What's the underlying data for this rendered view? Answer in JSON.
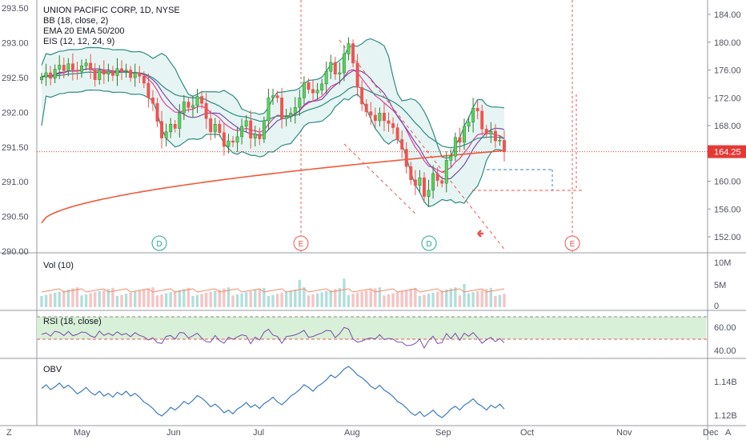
{
  "legend": {
    "title": "UNION PACIFIC CORP, 1D, NYSE",
    "bb": "BB (18, close, 2)",
    "ema": "EMA 20 EMA 50/200",
    "eis": "EIS (12, 12, 24, 9)"
  },
  "panes": {
    "vol_label": "Vol (10)",
    "rsi_label": "RSI (18, close)",
    "obv_label": "OBV"
  },
  "colors": {
    "up": "#26a69a",
    "up_candle": "#5ad25a",
    "down": "#ef5350",
    "bb_line": "#2e8b82",
    "bb_fill": "#e6f5f3",
    "ema_pink": "#e0409a",
    "ema_purple": "#7b4ba8",
    "ema_teal": "#2e8b82",
    "ema_red": "#ef5a3a",
    "price_tag": "#e53935",
    "rsi_band": "#d7f0d7",
    "obv_line": "#3b7bbf"
  },
  "chart_data": {
    "type": "candlestick",
    "title": "UNION PACIFIC CORP, 1D, NYSE",
    "left_axis_ticks": [
      "293.50",
      "293.00",
      "292.50",
      "292.00",
      "291.50",
      "291.00",
      "290.50",
      "290.00"
    ],
    "right_axis_ticks": [
      "184.00",
      "180.00",
      "176.00",
      "172.00",
      "168.00",
      "164.00",
      "160.00",
      "156.00",
      "152.00"
    ],
    "ylim": [
      151.5,
      184.5
    ],
    "last_price": "164.25",
    "x_ticks": [
      "Z",
      "May",
      "Jun",
      "Jul",
      "Aug",
      "Sep",
      "Oct",
      "Nov",
      "Dec",
      "A"
    ],
    "candles_close": [
      175.0,
      175.6,
      174.8,
      176.1,
      176.7,
      175.9,
      176.9,
      176.0,
      175.8,
      176.6,
      177.0,
      176.0,
      174.6,
      176.0,
      175.4,
      175.8,
      175.2,
      176.2,
      175.8,
      176.0,
      174.9,
      175.6,
      175.1,
      174.1,
      172.0,
      171.2,
      168.6,
      166.2,
      167.1,
      168.2,
      167.6,
      169.8,
      171.4,
      170.6,
      170.9,
      172.2,
      171.2,
      169.0,
      167.1,
      168.2,
      167.0,
      165.0,
      165.8,
      165.6,
      166.4,
      167.9,
      168.7,
      166.2,
      166.8,
      166.1,
      168.7,
      172.0,
      172.3,
      172.0,
      169.0,
      169.3,
      169.8,
      170.6,
      172.0,
      174.2,
      173.2,
      172.7,
      173.1,
      174.0,
      175.8,
      177.1,
      175.4,
      175.6,
      178.3,
      179.8,
      177.0,
      173.5,
      171.1,
      170.0,
      169.5,
      168.7,
      169.8,
      168.7,
      168.3,
      167.7,
      166.0,
      164.6,
      162.1,
      160.2,
      159.4,
      160.5,
      157.8,
      158.7,
      161.1,
      160.1,
      159.7,
      163.0,
      163.6,
      166.3,
      165.6,
      167.9,
      168.5,
      170.5,
      170.1,
      167.5,
      166.8,
      167.2,
      165.8,
      165.9,
      164.25
    ],
    "bb_upper_ends": [
      176.7,
      181.0,
      171.6
    ],
    "bb_lower_ends": [
      168.0,
      155.8,
      160.0
    ],
    "ema_200_ends": [
      154.0,
      164.4
    ],
    "event_markers": [
      {
        "label": "D",
        "kind": "dividend"
      },
      {
        "label": "E",
        "kind": "earnings"
      },
      {
        "label": "D",
        "kind": "dividend"
      },
      {
        "label": "E",
        "kind": "earnings"
      }
    ],
    "volume_axis": [
      "10M",
      "5M",
      "0"
    ],
    "rsi_axis": [
      "60.00",
      "40.00"
    ],
    "obv_axis": [
      "1.14B",
      "1.12B"
    ]
  }
}
